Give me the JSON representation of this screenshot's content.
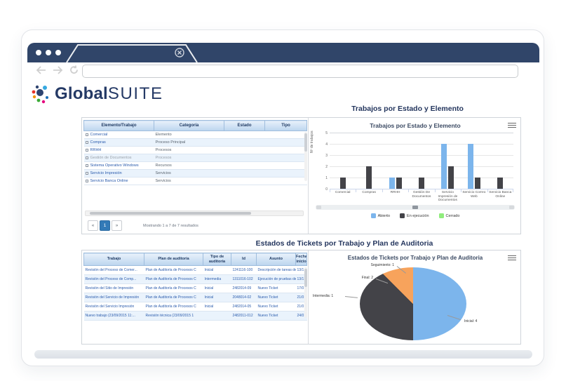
{
  "colors": {
    "chrome_navy": "#304569",
    "brand_navy": "#253a66",
    "series_blue": "#7cb5ec",
    "series_dark": "#434348",
    "series_green": "#90ed7d",
    "series_orange": "#f7a35c",
    "pager_active": "#337ab7",
    "table_header_blue": "#bcd5ee",
    "link_blue": "#2b5cad"
  },
  "browser": {
    "url_value": "",
    "tab_close_icon": "circled-x"
  },
  "logo": {
    "brand_bold": "Global",
    "brand_light": "SUITE"
  },
  "section1": {
    "title": "Trabajos por Estado y Elemento",
    "table": {
      "headers": [
        "Elemento/Trabajo",
        "Categoría",
        "Estado",
        "Tipo"
      ],
      "rows": [
        {
          "elemento": "Comercial",
          "categoria": "Elemento",
          "estado": "",
          "tipo": "",
          "muted": false
        },
        {
          "elemento": "Compras",
          "categoria": "Proceso Principal",
          "estado": "",
          "tipo": "",
          "muted": false
        },
        {
          "elemento": "RRHH",
          "categoria": "Procesos",
          "estado": "",
          "tipo": "",
          "muted": false
        },
        {
          "elemento": "Gestión de Documentos",
          "categoria": "Procesos",
          "estado": "",
          "tipo": "",
          "muted": true
        },
        {
          "elemento": "Sistema Operativo Windows",
          "categoria": "Recursos",
          "estado": "",
          "tipo": "",
          "muted": false
        },
        {
          "elemento": "Servicio Impresión",
          "categoria": "Servicios",
          "estado": "",
          "tipo": "",
          "muted": false
        },
        {
          "elemento": "Servicio Banca Online",
          "categoria": "Servicios",
          "estado": "",
          "tipo": "",
          "muted": false
        }
      ]
    },
    "pager": {
      "prev": "«",
      "page": "1",
      "next": "»",
      "summary": "Mostrando 1 a 7 de 7 resultados"
    }
  },
  "section2": {
    "title": "Estados de Tickets por Trabajo y Plan de Auditoria",
    "table": {
      "headers": [
        "Trabajo",
        "Plan de auditoría",
        "Tipo de auditoría",
        "Id",
        "Asunto",
        "Fecha inicio"
      ],
      "rows": [
        [
          "Revisión del Proceso de Comer...",
          "Plan de Auditoría de Procesos C",
          "Inicial",
          "1241116-100",
          "Descripción de tareas de",
          "13/1"
        ],
        [
          "Revisión del Proceso de Comp...",
          "Plan de Auditoría de Procesos C",
          "Intermedia",
          "1311016-102",
          "Ejecución de pruebas de",
          "13/1"
        ],
        [
          "Revisión del Sitio de Impresión",
          "Plan de Auditoría de Procesos C",
          "Inicial",
          "2482014-09",
          "Nuevo Ticket",
          "17/0"
        ],
        [
          "Revisión del Servicio de Impresión",
          "Plan de Auditoría de Procesos C",
          "Inicial",
          "2048014-02",
          "Nuevo Ticket",
          "21/0"
        ],
        [
          "Revisión del Servicio Impresión",
          "Plan de Auditoría de Procesos C",
          "Inicial",
          "2482014-05",
          "Nuevo Ticket",
          "21/0"
        ],
        [
          "Nuevo trabajo (23/09/2015 11:...",
          "Revisión técnica (23/09/2015 1",
          "",
          "2482011-012",
          "Nuevo Ticket",
          "24/0"
        ]
      ]
    }
  },
  "chart_data": [
    {
      "type": "bar",
      "title": "Trabajos por Estado y Elemento",
      "categories": [
        "Comercial",
        "Compras",
        "RRHH",
        "Gestión De Documentos",
        "Servicio Impresión de Documentos",
        "Servicio Correo Web",
        "Servicio Banca Online"
      ],
      "series": [
        {
          "name": "Abierto",
          "color": "#7cb5ec",
          "values": [
            0,
            0,
            1,
            0,
            4,
            4,
            0
          ]
        },
        {
          "name": "En ejecución",
          "color": "#434348",
          "values": [
            1,
            2,
            1,
            1,
            2,
            1,
            1
          ]
        },
        {
          "name": "Cerrado",
          "color": "#90ed7d",
          "values": [
            0,
            0,
            0,
            0,
            0,
            0,
            0
          ]
        }
      ],
      "ylabel": "Nº de trabajos",
      "ylim": [
        0,
        5
      ],
      "yticks": [
        0,
        1,
        2,
        3,
        4,
        5
      ],
      "grid": true,
      "legend_position": "bottom"
    },
    {
      "type": "pie",
      "title": "Estados de Tickets por Trabajo y Plan de Auditoria",
      "slices": [
        {
          "label": "Inicial",
          "value": 4,
          "color": "#7cb5ec"
        },
        {
          "label": "Final",
          "value": 2,
          "color": "#434348"
        },
        {
          "label": "Intermedia",
          "value": 1,
          "color": "#434348"
        },
        {
          "label": "Seguimiento",
          "value": 1,
          "color": "#f7a35c"
        }
      ],
      "legend_position": "none"
    }
  ]
}
